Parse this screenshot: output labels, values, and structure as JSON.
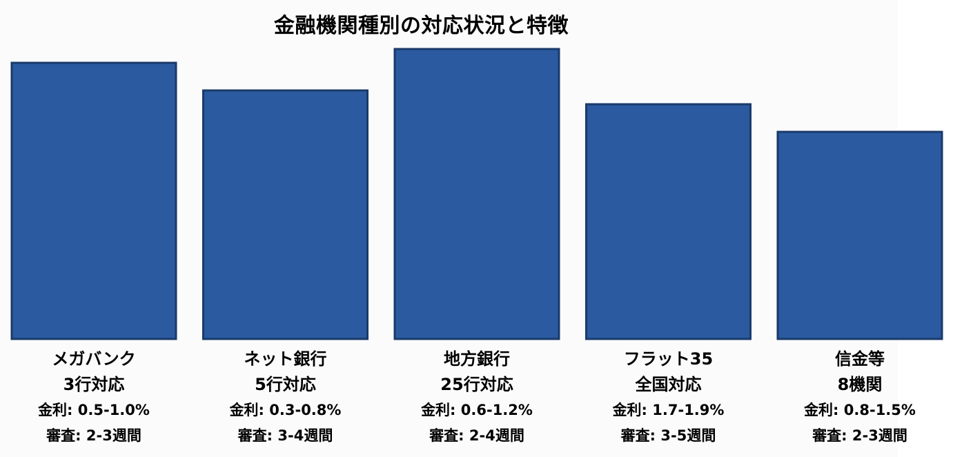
{
  "chart_data": {
    "type": "bar",
    "title": "金融機関種別の対応状況と特徴",
    "xlabel": "",
    "ylabel": "",
    "grid": false,
    "legend": "none",
    "bar_color": "#2b5aa0",
    "bar_edge_color": "#1a3a6a",
    "categories": [
      {
        "name": "メガバンク",
        "count": "3行対応",
        "rate": "金利: 0.5-1.0%",
        "review": "審査: 2-3週間",
        "value": 4.0
      },
      {
        "name": "ネット銀行",
        "count": "5行対応",
        "rate": "金利: 0.3-0.8%",
        "review": "審査: 3-4週間",
        "value": 3.6
      },
      {
        "name": "地方銀行",
        "count": "25行対応",
        "rate": "金利: 0.6-1.2%",
        "review": "審査: 2-4週間",
        "value": 4.2
      },
      {
        "name": "フラット35",
        "count": "全国対応",
        "rate": "金利: 1.7-1.9%",
        "review": "審査: 3-5週間",
        "value": 3.4
      },
      {
        "name": "信金等",
        "count": "8機関",
        "rate": "金利: 0.8-1.5%",
        "review": "審査: 2-3週間",
        "value": 3.0
      }
    ]
  }
}
